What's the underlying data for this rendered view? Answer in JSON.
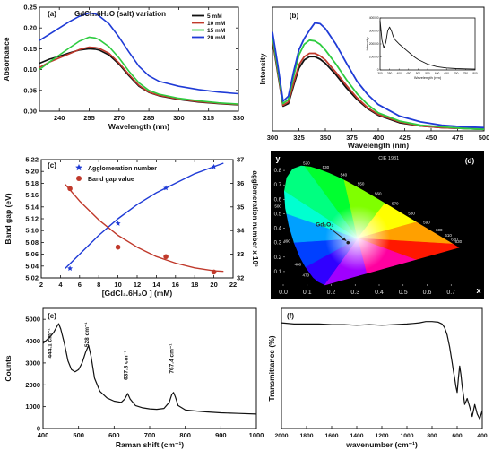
{
  "chart_data": [
    {
      "panel": "(a)",
      "type": "line",
      "title": "GdCl₃.6H₂O (salt) variation",
      "xlabel": "Wavelength (nm)",
      "ylabel": "Absorbance",
      "xlim": [
        230,
        330
      ],
      "ylim": [
        0,
        0.25
      ],
      "xticks": [
        240,
        255,
        270,
        285,
        300,
        315,
        330
      ],
      "yticks": [
        0.0,
        0.05,
        0.1,
        0.15,
        0.2,
        0.25
      ],
      "legend": "top-right",
      "series": [
        {
          "name": "5 mM",
          "color": "#111111",
          "x": [
            230,
            235,
            240,
            245,
            250,
            255,
            258,
            260,
            265,
            270,
            275,
            280,
            285,
            290,
            300,
            310,
            320,
            330
          ],
          "y": [
            0.115,
            0.125,
            0.132,
            0.14,
            0.147,
            0.15,
            0.149,
            0.147,
            0.135,
            0.113,
            0.085,
            0.06,
            0.045,
            0.037,
            0.028,
            0.022,
            0.018,
            0.015
          ]
        },
        {
          "name": "10 mM",
          "color": "#c0392b",
          "x": [
            230,
            235,
            240,
            245,
            250,
            255,
            258,
            260,
            265,
            270,
            275,
            280,
            285,
            290,
            300,
            310,
            320,
            330
          ],
          "y": [
            0.105,
            0.118,
            0.128,
            0.138,
            0.148,
            0.154,
            0.153,
            0.151,
            0.139,
            0.116,
            0.088,
            0.062,
            0.046,
            0.038,
            0.029,
            0.023,
            0.019,
            0.016
          ]
        },
        {
          "name": "15 mM",
          "color": "#2ecc40",
          "x": [
            230,
            235,
            240,
            245,
            250,
            255,
            258,
            260,
            265,
            270,
            275,
            280,
            285,
            290,
            300,
            310,
            320,
            330
          ],
          "y": [
            0.1,
            0.118,
            0.135,
            0.152,
            0.168,
            0.178,
            0.176,
            0.172,
            0.155,
            0.128,
            0.096,
            0.068,
            0.05,
            0.041,
            0.031,
            0.025,
            0.02,
            0.017
          ]
        },
        {
          "name": "20 mM",
          "color": "#1f3bd6",
          "x": [
            230,
            235,
            240,
            245,
            250,
            255,
            258,
            260,
            265,
            270,
            275,
            280,
            285,
            290,
            300,
            310,
            320,
            330
          ],
          "y": [
            0.17,
            0.185,
            0.2,
            0.215,
            0.228,
            0.236,
            0.234,
            0.229,
            0.21,
            0.178,
            0.142,
            0.108,
            0.085,
            0.072,
            0.06,
            0.052,
            0.046,
            0.042
          ]
        }
      ]
    },
    {
      "panel": "(b)",
      "type": "line",
      "xlabel": "Wavelength (nm)",
      "ylabel": "Intensity",
      "xlim": [
        300,
        500
      ],
      "xticks": [
        300,
        325,
        350,
        375,
        400,
        425,
        450,
        475,
        500
      ],
      "ylim": [
        0,
        1.5
      ],
      "series": [
        {
          "name": "5 mM",
          "color": "#111111",
          "x": [
            300,
            305,
            310,
            315,
            320,
            325,
            330,
            335,
            340,
            345,
            350,
            360,
            370,
            380,
            390,
            400,
            420,
            440,
            460,
            480,
            500
          ],
          "y": [
            1.1,
            0.7,
            0.3,
            0.33,
            0.55,
            0.76,
            0.86,
            0.9,
            0.9,
            0.87,
            0.82,
            0.68,
            0.52,
            0.38,
            0.27,
            0.19,
            0.1,
            0.06,
            0.04,
            0.03,
            0.02
          ]
        },
        {
          "name": "10 mM",
          "color": "#c0392b",
          "x": [
            300,
            305,
            310,
            315,
            320,
            325,
            330,
            335,
            340,
            345,
            350,
            360,
            370,
            380,
            390,
            400,
            420,
            440,
            460,
            480,
            500
          ],
          "y": [
            1.12,
            0.72,
            0.31,
            0.35,
            0.58,
            0.8,
            0.9,
            0.94,
            0.94,
            0.91,
            0.86,
            0.71,
            0.55,
            0.4,
            0.28,
            0.2,
            0.11,
            0.06,
            0.04,
            0.03,
            0.02
          ]
        },
        {
          "name": "15 mM",
          "color": "#2ecc40",
          "x": [
            300,
            305,
            310,
            315,
            320,
            325,
            330,
            335,
            340,
            345,
            350,
            360,
            370,
            380,
            390,
            400,
            420,
            440,
            460,
            480,
            500
          ],
          "y": [
            1.15,
            0.75,
            0.33,
            0.38,
            0.66,
            0.92,
            1.05,
            1.1,
            1.09,
            1.05,
            0.98,
            0.81,
            0.62,
            0.45,
            0.32,
            0.22,
            0.12,
            0.07,
            0.05,
            0.03,
            0.02
          ]
        },
        {
          "name": "20 mM",
          "color": "#1f3bd6",
          "x": [
            300,
            305,
            310,
            315,
            320,
            325,
            330,
            335,
            340,
            345,
            350,
            360,
            370,
            380,
            390,
            400,
            420,
            440,
            460,
            480,
            500
          ],
          "y": [
            1.2,
            0.8,
            0.36,
            0.42,
            0.72,
            0.98,
            1.12,
            1.22,
            1.31,
            1.3,
            1.24,
            1.05,
            0.82,
            0.6,
            0.44,
            0.32,
            0.18,
            0.11,
            0.07,
            0.05,
            0.04
          ]
        }
      ],
      "inset": {
        "type": "line",
        "xlabel": "Wavelength (nm)",
        "ylabel": "Intensity",
        "xlim": [
          300,
          800
        ],
        "xticks": [
          300,
          350,
          400,
          450,
          500,
          550,
          600,
          650,
          700,
          750,
          800
        ],
        "ylim": [
          0,
          400000
        ],
        "yticks": [
          0,
          100000,
          200000,
          300000,
          400000
        ],
        "series": [
          {
            "color": "#111111",
            "x": [
              300,
              310,
              320,
              330,
              340,
              350,
              360,
              370,
              380,
              390,
              400,
              420,
              440,
              460,
              480,
              500,
              550,
              600,
              650,
              700,
              750,
              800
            ],
            "y": [
              380000,
              230000,
              170000,
              210000,
              300000,
              330000,
              300000,
              255000,
              230000,
              215000,
              200000,
              175000,
              150000,
              125000,
              100000,
              80000,
              45000,
              25000,
              15000,
              10000,
              8000,
              6000
            ]
          }
        ]
      }
    },
    {
      "panel": "(c)",
      "type": "scatter",
      "xlabel": "[GdCl₃.6H₂O ] (mM)",
      "ylabel": "Band gap (eV)",
      "y2label": "agglomeration number x 10³",
      "xlim": [
        2,
        22
      ],
      "xticks": [
        2,
        4,
        6,
        8,
        10,
        12,
        14,
        16,
        18,
        20,
        22
      ],
      "ylim": [
        5.02,
        5.22
      ],
      "yticks": [
        5.02,
        5.04,
        5.06,
        5.08,
        5.1,
        5.12,
        5.14,
        5.16,
        5.18,
        5.2,
        5.22
      ],
      "y2lim": [
        32,
        37
      ],
      "y2ticks": [
        32,
        33,
        34,
        35,
        36,
        37
      ],
      "legend": "top-left",
      "series": [
        {
          "name": "Agglomeration number",
          "axis": "right",
          "marker": "star",
          "color": "#1f3bd6",
          "x": [
            5,
            10,
            15,
            20
          ],
          "y": [
            32.4,
            34.3,
            35.8,
            36.7
          ],
          "fit_x": [
            4.5,
            6,
            8,
            10,
            12,
            14,
            16,
            18,
            20,
            21
          ],
          "fit_y": [
            32.4,
            33.0,
            33.8,
            34.5,
            35.1,
            35.6,
            36.0,
            36.4,
            36.7,
            36.85
          ]
        },
        {
          "name": "Band gap value",
          "axis": "left",
          "marker": "circle",
          "color": "#c0392b",
          "x": [
            5,
            10,
            15,
            20
          ],
          "y": [
            5.171,
            5.072,
            5.056,
            5.03
          ],
          "fit_x": [
            4.5,
            6,
            8,
            10,
            12,
            14,
            16,
            18,
            20,
            21
          ],
          "fit_y": [
            5.178,
            5.15,
            5.118,
            5.092,
            5.072,
            5.056,
            5.045,
            5.037,
            5.032,
            5.031
          ]
        }
      ]
    },
    {
      "panel": "(d)",
      "type": "chromaticity",
      "title": "CIE 1931",
      "xlabel": "x",
      "ylabel": "y",
      "xlim": [
        0,
        0.8
      ],
      "ylim": [
        0,
        0.9
      ],
      "xticks": [
        0.0,
        0.1,
        0.2,
        0.3,
        0.4,
        0.5,
        0.6,
        0.7
      ],
      "yticks": [
        0.1,
        0.2,
        0.3,
        0.4,
        0.5,
        0.6,
        0.7,
        0.8
      ],
      "xtick_labels": [
        "0.0",
        "0.1",
        "0.2",
        "0.3",
        "0.4",
        "0.5",
        "0.6",
        "0.7"
      ],
      "ytick_labels": [
        "0.1",
        "0.2",
        "0.3",
        "0.4",
        "0.5",
        "0.6",
        "0.7",
        "0.8"
      ],
      "point": {
        "label": "Gd₂O₃",
        "x": 0.27,
        "y": 0.3
      },
      "wavelength_labels": [
        {
          "nm": "520",
          "x": 0.0743,
          "y": 0.8338
        },
        {
          "nm": "530",
          "x": 0.1547,
          "y": 0.8059
        },
        {
          "nm": "540",
          "x": 0.2296,
          "y": 0.7543
        },
        {
          "nm": "550",
          "x": 0.3016,
          "y": 0.6923
        },
        {
          "nm": "560",
          "x": 0.3731,
          "y": 0.6245
        },
        {
          "nm": "570",
          "x": 0.4441,
          "y": 0.5547
        },
        {
          "nm": "580",
          "x": 0.5125,
          "y": 0.4866
        },
        {
          "nm": "590",
          "x": 0.5752,
          "y": 0.4242
        },
        {
          "nm": "600",
          "x": 0.627,
          "y": 0.3725
        },
        {
          "nm": "610",
          "x": 0.6658,
          "y": 0.334
        },
        {
          "nm": "620",
          "x": 0.6915,
          "y": 0.3083
        },
        {
          "nm": "630",
          "x": 0.7079,
          "y": 0.292
        },
        {
          "nm": "500",
          "x": 0.0082,
          "y": 0.5384
        },
        {
          "nm": "490",
          "x": 0.0454,
          "y": 0.295
        },
        {
          "nm": "480",
          "x": 0.0913,
          "y": 0.1327
        },
        {
          "nm": "470",
          "x": 0.1241,
          "y": 0.0578
        }
      ]
    },
    {
      "panel": "(e)",
      "type": "line",
      "xlabel": "Raman shift (cm⁻¹)",
      "ylabel": "Counts",
      "xlim": [
        400,
        1000
      ],
      "xticks": [
        400,
        500,
        600,
        700,
        800,
        900,
        1000
      ],
      "ylim": [
        0,
        5500
      ],
      "yticks": [
        0,
        1000,
        2000,
        3000,
        4000,
        5000
      ],
      "annotations": [
        {
          "text": "444.1 cm⁻¹",
          "x": 444.1
        },
        {
          "text": "528 cm⁻¹",
          "x": 528
        },
        {
          "text": "637.8 cm⁻¹",
          "x": 637.8
        },
        {
          "text": "767.4 cm⁻¹",
          "x": 767.4
        }
      ],
      "series": [
        {
          "color": "#111111",
          "x": [
            400,
            410,
            420,
            430,
            440,
            444,
            450,
            460,
            470,
            480,
            490,
            500,
            510,
            520,
            528,
            535,
            545,
            560,
            580,
            600,
            620,
            630,
            638,
            645,
            660,
            680,
            700,
            720,
            740,
            755,
            762,
            767,
            772,
            780,
            800,
            830,
            860,
            900,
            950,
            1000
          ],
          "y": [
            3900,
            4050,
            4200,
            4400,
            4700,
            4800,
            4550,
            3900,
            3100,
            2700,
            2600,
            2700,
            3000,
            3500,
            3800,
            3300,
            2300,
            1700,
            1400,
            1250,
            1200,
            1350,
            1600,
            1350,
            1050,
            950,
            900,
            880,
            920,
            1200,
            1550,
            1650,
            1450,
            1050,
            850,
            800,
            760,
            720,
            690,
            660
          ]
        }
      ]
    },
    {
      "panel": "(f)",
      "type": "line",
      "xlabel": "wavenumber (cm⁻¹)",
      "ylabel": "Transmittance (%)",
      "xlim": [
        2000,
        400
      ],
      "xticks": [
        2000,
        1800,
        1600,
        1400,
        1200,
        1000,
        800,
        600,
        400
      ],
      "series": [
        {
          "color": "#111111",
          "x": [
            2000,
            1900,
            1800,
            1700,
            1600,
            1500,
            1400,
            1300,
            1200,
            1100,
            1000,
            950,
            900,
            850,
            800,
            750,
            720,
            700,
            680,
            660,
            640,
            630,
            620,
            610,
            600,
            590,
            580,
            570,
            560,
            550,
            540,
            520,
            500,
            480,
            460,
            440,
            420,
            400
          ],
          "y": [
            88,
            87,
            87,
            87,
            86.5,
            86.5,
            86,
            86.5,
            86,
            86.5,
            87,
            87.5,
            88,
            89,
            89,
            88.5,
            87,
            84,
            78,
            68,
            55,
            48,
            42,
            35,
            30,
            42,
            52,
            45,
            35,
            28,
            20,
            25,
            18,
            10,
            20,
            12,
            8,
            15
          ]
        }
      ]
    }
  ]
}
